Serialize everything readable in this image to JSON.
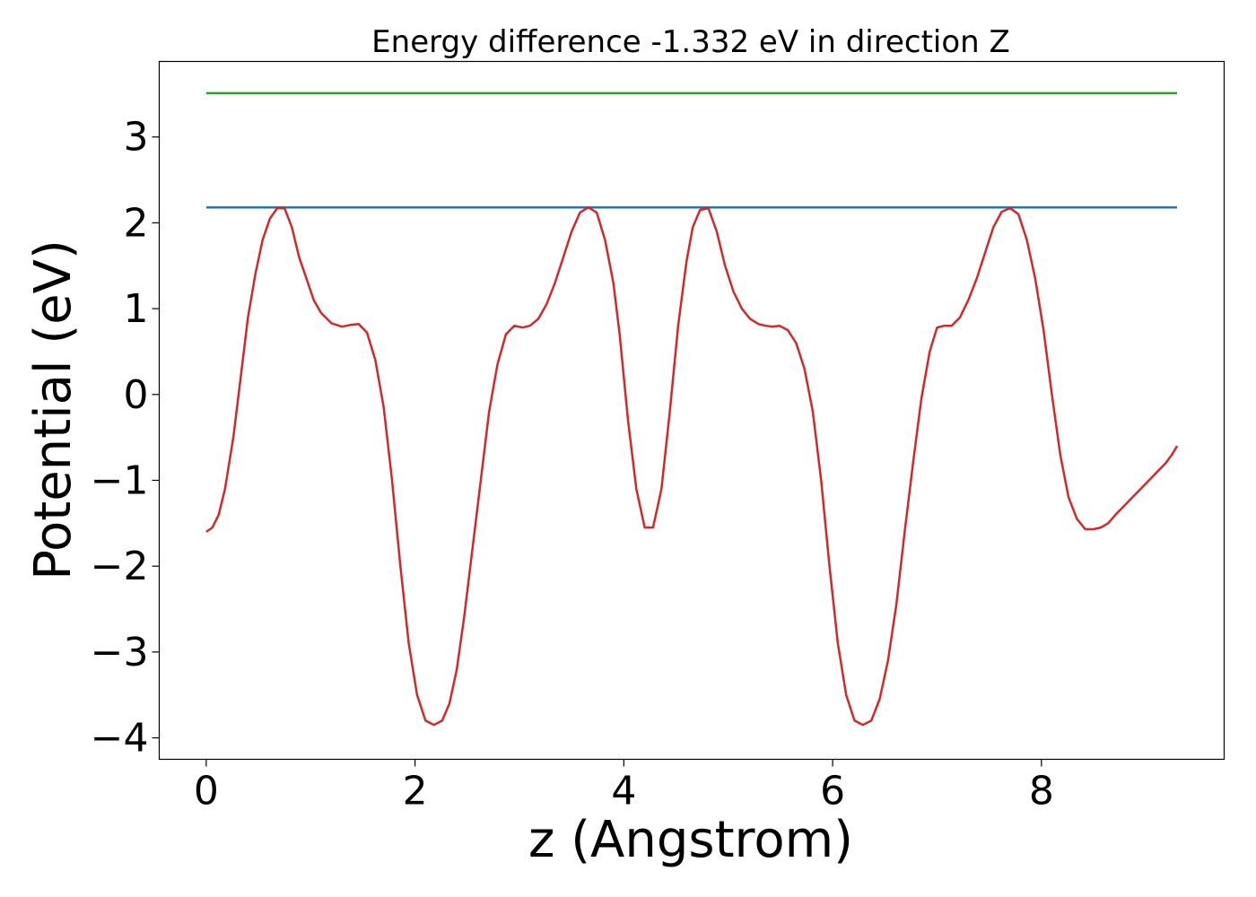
{
  "chart_data": {
    "type": "line",
    "title": "Energy difference -1.332 eV in direction Z",
    "xlabel": "z (Angstrom)",
    "ylabel": "Potential (eV)",
    "xlim": [
      -0.45,
      9.75
    ],
    "ylim": [
      -4.25,
      3.88
    ],
    "xticks": [
      0,
      2,
      4,
      6,
      8
    ],
    "yticks": [
      -4,
      -3,
      -2,
      -1,
      0,
      1,
      2,
      3
    ],
    "xtick_labels": [
      "0",
      "2",
      "4",
      "6",
      "8"
    ],
    "ytick_labels": [
      "−4",
      "−3",
      "−2",
      "−1",
      "0",
      "1",
      "2",
      "3"
    ],
    "grid": false,
    "legend": "none",
    "series": [
      {
        "color": "#2ca02c",
        "x": [
          0,
          9.3
        ],
        "y": [
          3.51,
          3.51
        ]
      },
      {
        "color": "#1f77b4",
        "x": [
          0,
          9.3
        ],
        "y": [
          2.18,
          2.18
        ]
      },
      {
        "color": "#d62728",
        "x": [
          0,
          0.06,
          0.12,
          0.18,
          0.26,
          0.33,
          0.4,
          0.47,
          0.54,
          0.61,
          0.68,
          0.75,
          0.82,
          0.89,
          0.96,
          1.03,
          1.1,
          1.2,
          1.3,
          1.38,
          1.46,
          1.54,
          1.62,
          1.7,
          1.78,
          1.86,
          1.94,
          2.02,
          2.1,
          2.18,
          2.26,
          2.33,
          2.4,
          2.47,
          2.55,
          2.63,
          2.71,
          2.79,
          2.87,
          2.95,
          3.03,
          3.1,
          3.18,
          3.26,
          3.34,
          3.42,
          3.5,
          3.58,
          3.66,
          3.74,
          3.82,
          3.9,
          3.96,
          4.04,
          4.12,
          4.2,
          4.28,
          4.36,
          4.44,
          4.52,
          4.6,
          4.66,
          4.73,
          4.81,
          4.89,
          4.97,
          5.05,
          5.13,
          5.21,
          5.29,
          5.36,
          5.42,
          5.49,
          5.57,
          5.65,
          5.73,
          5.81,
          5.89,
          5.97,
          6.05,
          6.13,
          6.21,
          6.29,
          6.37,
          6.45,
          6.53,
          6.61,
          6.69,
          6.77,
          6.85,
          6.93,
          7.0,
          7.07,
          7.14,
          7.22,
          7.3,
          7.38,
          7.46,
          7.54,
          7.62,
          7.7,
          7.78,
          7.86,
          7.94,
          8.02,
          8.1,
          8.18,
          8.26,
          8.34,
          8.42,
          8.5,
          8.57,
          8.64,
          8.71,
          8.79,
          8.87,
          8.95,
          9.03,
          9.11,
          9.19,
          9.25,
          9.3
        ],
        "y": [
          -1.6,
          -1.55,
          -1.4,
          -1.1,
          -0.5,
          0.2,
          0.9,
          1.4,
          1.8,
          2.05,
          2.17,
          2.17,
          1.95,
          1.6,
          1.35,
          1.1,
          0.95,
          0.83,
          0.79,
          0.81,
          0.82,
          0.72,
          0.4,
          -0.15,
          -1.0,
          -2.0,
          -2.9,
          -3.5,
          -3.8,
          -3.85,
          -3.8,
          -3.6,
          -3.2,
          -2.6,
          -1.8,
          -1.0,
          -0.2,
          0.35,
          0.7,
          0.8,
          0.78,
          0.8,
          0.88,
          1.05,
          1.3,
          1.6,
          1.9,
          2.12,
          2.18,
          2.12,
          1.8,
          1.3,
          0.7,
          -0.3,
          -1.1,
          -1.55,
          -1.55,
          -1.1,
          -0.2,
          0.8,
          1.55,
          1.95,
          2.15,
          2.17,
          1.9,
          1.5,
          1.2,
          1.0,
          0.88,
          0.82,
          0.8,
          0.79,
          0.8,
          0.75,
          0.6,
          0.3,
          -0.2,
          -1.0,
          -2.0,
          -2.9,
          -3.5,
          -3.8,
          -3.85,
          -3.8,
          -3.55,
          -3.1,
          -2.45,
          -1.6,
          -0.8,
          -0.05,
          0.5,
          0.78,
          0.8,
          0.8,
          0.9,
          1.1,
          1.35,
          1.65,
          1.95,
          2.13,
          2.17,
          2.1,
          1.8,
          1.35,
          0.75,
          0.0,
          -0.7,
          -1.2,
          -1.45,
          -1.57,
          -1.57,
          -1.55,
          -1.5,
          -1.4,
          -1.3,
          -1.2,
          -1.1,
          -1.0,
          -0.9,
          -0.8,
          -0.7,
          -0.6
        ]
      }
    ]
  }
}
